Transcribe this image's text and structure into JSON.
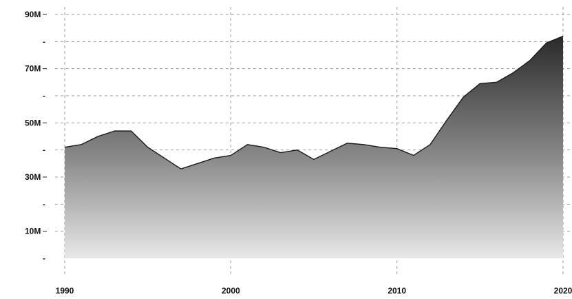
{
  "chart_data": {
    "type": "area",
    "title": "",
    "xlabel": "",
    "ylabel": "",
    "xlim": [
      1990,
      2020
    ],
    "ylim": [
      0,
      90000000
    ],
    "x_ticks": [
      1990,
      2000,
      2010,
      2020
    ],
    "x_tick_labels": [
      "1990",
      "2000",
      "2010",
      "2020"
    ],
    "y_ticks": [
      10000000,
      30000000,
      50000000,
      70000000,
      90000000
    ],
    "y_tick_labels": [
      "10M",
      "30M",
      "50M",
      "70M",
      "90M"
    ],
    "y_minor_ticks": [
      0,
      20000000,
      40000000,
      60000000,
      80000000
    ],
    "y_minor_tick_label": "-",
    "grid": true,
    "colors": {
      "gradient_top": "#2a2a2a",
      "gradient_mid": "#8a8a8a",
      "gradient_bottom": "#e8e8e8",
      "line": "#1a1a1a"
    },
    "series": [
      {
        "x": [
          1990,
          1991,
          1992,
          1993,
          1994,
          1995,
          1996,
          1997,
          1998,
          1999,
          2000,
          2001,
          2002,
          2003,
          2004,
          2005,
          2006,
          2007,
          2008,
          2009,
          2010,
          2011,
          2012,
          2013,
          2014,
          2015,
          2016,
          2017,
          2018,
          2019,
          2020
        ],
        "values": [
          41000000,
          42000000,
          45000000,
          47000000,
          47000000,
          41000000,
          37000000,
          33000000,
          35000000,
          37000000,
          38000000,
          42000000,
          41000000,
          39000000,
          40000000,
          36500000,
          39500000,
          42500000,
          42000000,
          41000000,
          40500000,
          38000000,
          42000000,
          51000000,
          59500000,
          64500000,
          65000000,
          68500000,
          73000000,
          79500000,
          82000000
        ]
      }
    ]
  }
}
